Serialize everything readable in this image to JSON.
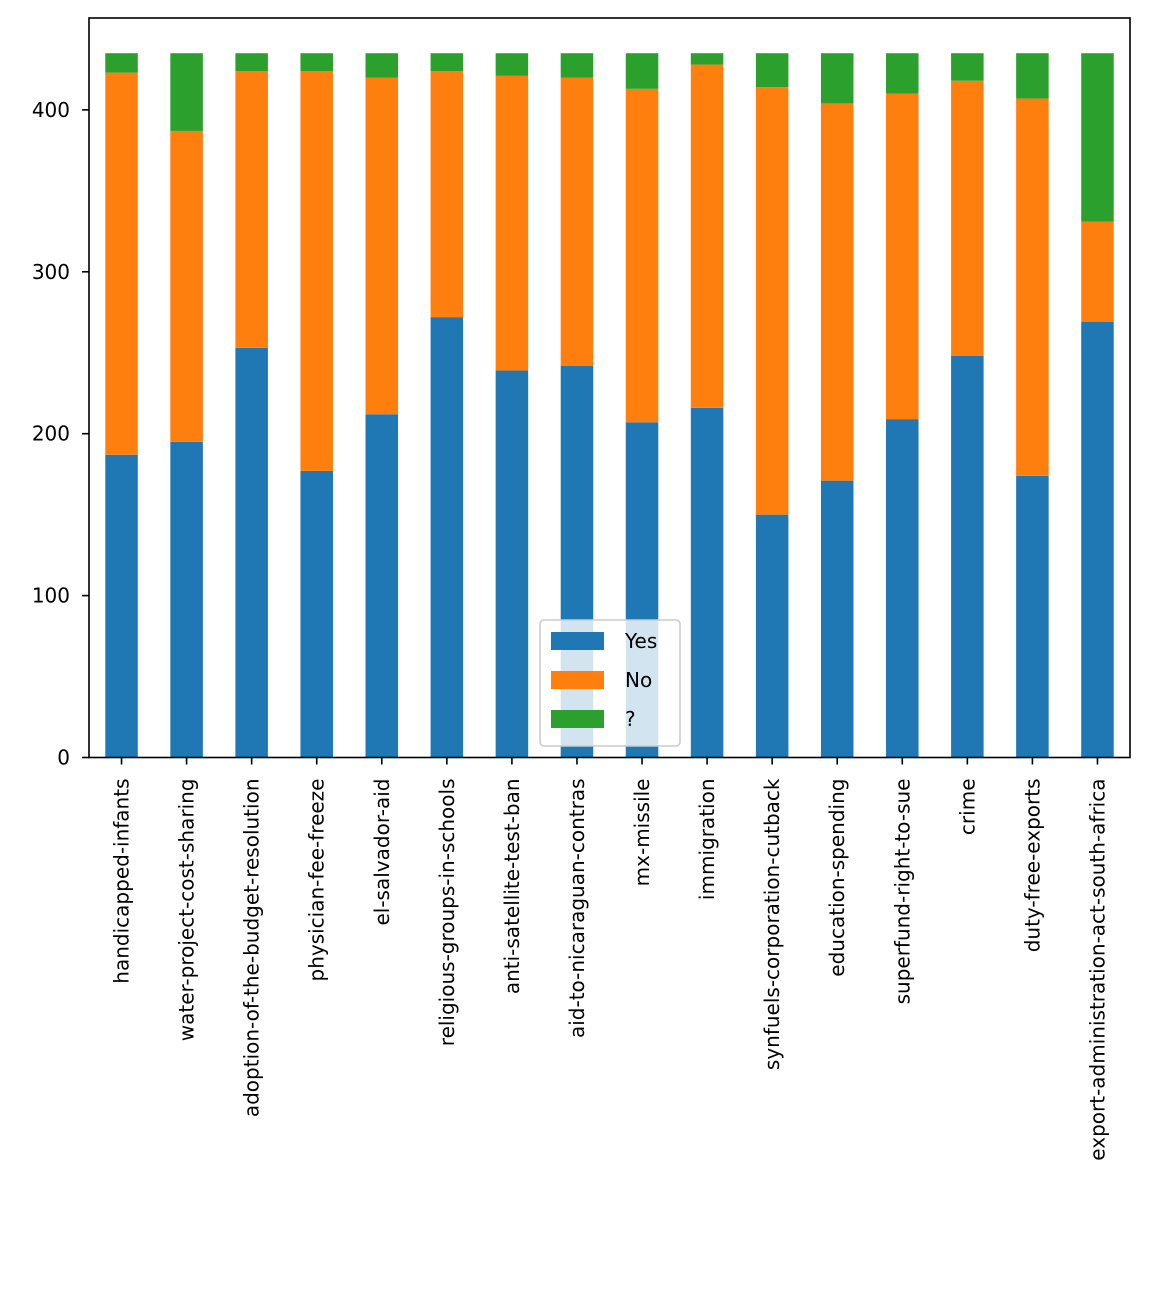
{
  "chart_data": {
    "type": "bar",
    "stacked": true,
    "title": "",
    "xlabel": "",
    "ylabel": "",
    "ylim": [
      0,
      456.75
    ],
    "yticks": [
      0,
      100,
      200,
      300,
      400
    ],
    "grid": false,
    "legend_position": "lower-center",
    "categories": [
      "handicapped-infants",
      "water-project-cost-sharing",
      "adoption-of-the-budget-resolution",
      "physician-fee-freeze",
      "el-salvador-aid",
      "religious-groups-in-schools",
      "anti-satellite-test-ban",
      "aid-to-nicaraguan-contras",
      "mx-missile",
      "immigration",
      "synfuels-corporation-cutback",
      "education-spending",
      "superfund-right-to-sue",
      "crime",
      "duty-free-exports",
      "export-administration-act-south-africa"
    ],
    "series": [
      {
        "name": "Yes",
        "color": "#1f77b4",
        "values": [
          187,
          195,
          253,
          177,
          212,
          272,
          239,
          242,
          207,
          216,
          150,
          171,
          209,
          248,
          174,
          269
        ]
      },
      {
        "name": "No",
        "color": "#ff7f0e",
        "values": [
          236,
          192,
          171,
          247,
          208,
          152,
          182,
          178,
          206,
          212,
          264,
          233,
          201,
          170,
          233,
          62
        ]
      },
      {
        "name": "?",
        "color": "#2ca02c",
        "values": [
          12,
          48,
          11,
          11,
          15,
          11,
          14,
          15,
          22,
          7,
          21,
          31,
          25,
          17,
          28,
          104
        ]
      }
    ]
  }
}
